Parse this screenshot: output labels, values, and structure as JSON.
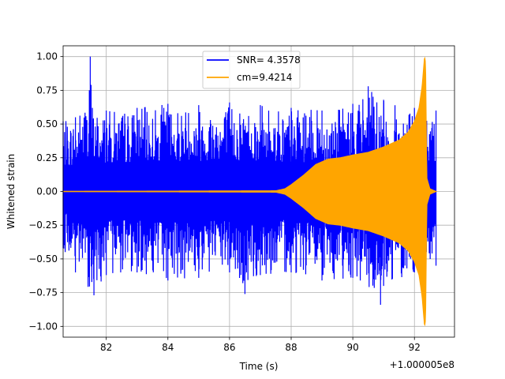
{
  "chart_data": {
    "type": "line",
    "xlabel": "Time (s)",
    "ylabel": "Whitened strain",
    "offset_label": "+1.000005e8",
    "xlim": [
      80.6,
      93.3
    ],
    "ylim": [
      -1.08,
      1.08
    ],
    "xticks": [
      82,
      84,
      86,
      88,
      90,
      92
    ],
    "xtick_labels": [
      "82",
      "84",
      "86",
      "88",
      "90",
      "92"
    ],
    "yticks": [
      -1.0,
      -0.75,
      -0.5,
      -0.25,
      0.0,
      0.25,
      0.5,
      0.75,
      1.0
    ],
    "ytick_labels": [
      "−1.00",
      "−0.75",
      "−0.50",
      "−0.25",
      "0.00",
      "0.25",
      "0.50",
      "0.75",
      "1.00"
    ],
    "grid": true,
    "legend_position": "top-center",
    "series": [
      {
        "name": "SNR= 4.3578",
        "color": "#0000ff",
        "kind": "noise",
        "x_range": [
          80.6,
          92.7
        ],
        "upper_envelope": [
          [
            80.6,
            0.52
          ],
          [
            81.0,
            0.55
          ],
          [
            81.45,
            0.75
          ],
          [
            81.48,
            1.0
          ],
          [
            81.55,
            0.62
          ],
          [
            82.0,
            0.6
          ],
          [
            83.0,
            0.62
          ],
          [
            84.0,
            0.65
          ],
          [
            85.0,
            0.64
          ],
          [
            86.0,
            0.66
          ],
          [
            87.0,
            0.64
          ],
          [
            88.0,
            0.62
          ],
          [
            89.0,
            0.6
          ],
          [
            90.0,
            0.65
          ],
          [
            90.5,
            0.78
          ],
          [
            91.0,
            0.68
          ],
          [
            92.0,
            0.62
          ],
          [
            92.7,
            0.6
          ]
        ],
        "lower_envelope": [
          [
            80.6,
            -0.42
          ],
          [
            81.0,
            -0.6
          ],
          [
            81.6,
            -0.77
          ],
          [
            82.0,
            -0.62
          ],
          [
            83.0,
            -0.6
          ],
          [
            84.0,
            -0.66
          ],
          [
            85.0,
            -0.64
          ],
          [
            86.0,
            -0.6
          ],
          [
            86.5,
            -0.76
          ],
          [
            87.0,
            -0.62
          ],
          [
            88.0,
            -0.6
          ],
          [
            89.0,
            -0.66
          ],
          [
            90.0,
            -0.64
          ],
          [
            90.9,
            -0.84
          ],
          [
            91.0,
            -0.7
          ],
          [
            92.0,
            -0.6
          ],
          [
            92.7,
            -0.55
          ]
        ]
      },
      {
        "name": "cm=9.4214",
        "color": "#ffa500",
        "kind": "chirp",
        "x_range": [
          80.6,
          92.7
        ],
        "envelope": [
          [
            80.6,
            0.0
          ],
          [
            87.5,
            0.005
          ],
          [
            87.8,
            0.02
          ],
          [
            88.0,
            0.05
          ],
          [
            88.4,
            0.12
          ],
          [
            88.8,
            0.2
          ],
          [
            89.2,
            0.24
          ],
          [
            89.6,
            0.25
          ],
          [
            90.0,
            0.27
          ],
          [
            90.5,
            0.29
          ],
          [
            91.0,
            0.33
          ],
          [
            91.5,
            0.38
          ],
          [
            91.8,
            0.44
          ],
          [
            92.0,
            0.52
          ],
          [
            92.15,
            0.62
          ],
          [
            92.25,
            0.78
          ],
          [
            92.33,
            1.0
          ],
          [
            92.36,
            0.95
          ],
          [
            92.4,
            0.1
          ],
          [
            92.5,
            0.02
          ],
          [
            92.7,
            0.0
          ]
        ]
      }
    ]
  }
}
